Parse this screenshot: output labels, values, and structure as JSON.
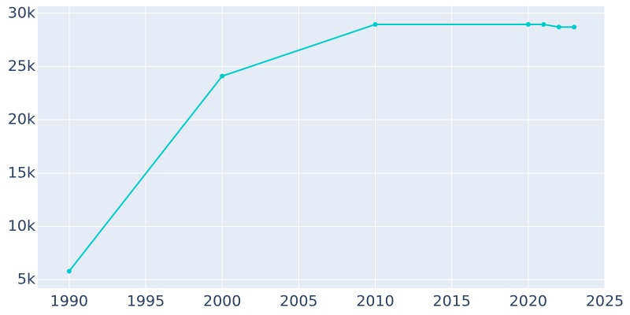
{
  "chart_data": {
    "type": "line",
    "x": [
      1990,
      2000,
      2010,
      2020,
      2021,
      2022,
      2023
    ],
    "series": [
      {
        "color": "#00cccc",
        "values": [
          5800,
          24100,
          28950,
          28950,
          28950,
          28700,
          28700
        ]
      }
    ],
    "xlim": [
      1987.95,
      2025
    ],
    "xticks": [
      1990,
      1995,
      2000,
      2005,
      2010,
      2015,
      2020,
      2025
    ],
    "ylim": [
      4200,
      30650
    ],
    "yticks": [
      {
        "value": 5000,
        "label": "5k"
      },
      {
        "value": 10000,
        "label": "10k"
      },
      {
        "value": 15000,
        "label": "15k"
      },
      {
        "value": 20000,
        "label": "20k"
      },
      {
        "value": 25000,
        "label": "25k"
      },
      {
        "value": 30000,
        "label": "30k"
      }
    ],
    "grid": true
  }
}
